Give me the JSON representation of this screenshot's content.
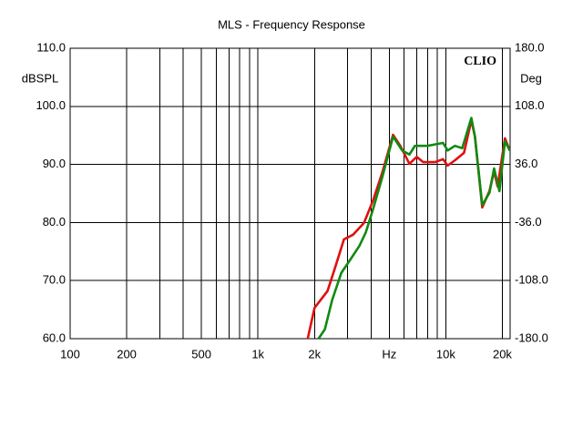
{
  "chart_data": {
    "type": "line",
    "title": "MLS - Frequency Response",
    "y_axis_label": "dBSPL",
    "y2_axis_label": "Deg",
    "x_axis_label": "Hz",
    "annotation": "CLIO",
    "xscale": "log",
    "xlim": [
      100,
      22000
    ],
    "xticks": [
      100,
      200,
      500,
      {
        "value": 1000,
        "label": "1k"
      },
      {
        "value": 2000,
        "label": "2k"
      },
      {
        "value": 10000,
        "label": "10k"
      },
      {
        "value": 20000,
        "label": "20k"
      }
    ],
    "x_axis_label_value": 5000,
    "xminor_ticks": [
      300,
      400,
      600,
      700,
      800,
      900,
      3000,
      4000,
      6000,
      7000,
      8000,
      9000
    ],
    "ylim": [
      60,
      110
    ],
    "yticks": [
      {
        "value": 60,
        "label": "60.0"
      },
      {
        "value": 70,
        "label": "70.0"
      },
      {
        "value": 80,
        "label": "80.0"
      },
      {
        "value": 90,
        "label": "90.0"
      },
      {
        "value": 100,
        "label": "100.0"
      },
      {
        "value": 110,
        "label": "110.0"
      }
    ],
    "y2lim": [
      -180,
      180
    ],
    "y2ticks": [
      {
        "value": -180,
        "label": "-180.0"
      },
      {
        "value": -108,
        "label": "-108.0"
      },
      {
        "value": -36,
        "label": "-36.0"
      },
      {
        "value": 36,
        "label": "36.0"
      },
      {
        "value": 108,
        "label": "108.0"
      },
      {
        "value": 180,
        "label": "180.0"
      }
    ],
    "grid": true,
    "series": [
      {
        "color": "#e01010",
        "x": [
          1840,
          2000,
          2345,
          2566,
          2869,
          3207,
          3665,
          4100,
          4580,
          5237,
          5726,
          6400,
          7000,
          7570,
          8750,
          9670,
          10230,
          11180,
          12500,
          13680,
          14290,
          15630,
          17070,
          18070,
          18880,
          20650,
          21900
        ],
        "values": [
          60,
          65.3,
          68.2,
          72.1,
          77.1,
          77.9,
          79.9,
          83.8,
          88.5,
          95.1,
          93.2,
          90.1,
          91.3,
          90.4,
          90.4,
          90.9,
          89.8,
          90.7,
          92.0,
          97.6,
          94.8,
          82.6,
          85.4,
          88.8,
          86.2,
          94.5,
          92.4
        ]
      },
      {
        "color": "#108a10",
        "x": [
          2100,
          2270,
          2480,
          2775,
          3100,
          3470,
          3750,
          4100,
          4580,
          5240,
          5860,
          6400,
          6850,
          8000,
          8950,
          9670,
          10230,
          11180,
          12230,
          13680,
          14290,
          15630,
          17070,
          18070,
          19300,
          20650,
          21900
        ],
        "values": [
          60,
          61.6,
          66.6,
          71.3,
          73.6,
          76,
          78.3,
          82.3,
          87.7,
          94.8,
          92.4,
          91.7,
          93.2,
          93.2,
          93.5,
          93.7,
          92.4,
          93.2,
          92.8,
          98,
          94.8,
          83,
          85.1,
          89.3,
          85.4,
          94,
          92.4
        ]
      }
    ]
  }
}
